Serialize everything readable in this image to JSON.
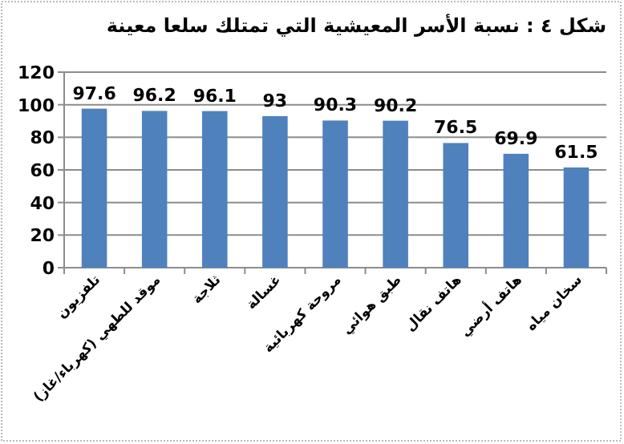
{
  "chart_data": {
    "type": "bar",
    "title": "شكل ٤ : نسبة الأسر المعيشية التي تمتلك سلعا معينة",
    "categories": [
      "تلفزيون",
      "موقد للطهي (كهرباء/غاز)",
      "ثلاجة",
      "غسالة",
      "مروحة كهربائية",
      "طبق هوائي",
      "هاتف نقال",
      "هاتف أرضي",
      "سخان مياه"
    ],
    "values": [
      97.6,
      96.2,
      96.1,
      93,
      90.3,
      90.2,
      76.5,
      69.9,
      61.5
    ],
    "color": "#4f81bd",
    "ylim": [
      0,
      120
    ],
    "yticks": [
      0,
      20,
      40,
      60,
      80,
      100,
      120
    ],
    "grid": "y",
    "data_labels": true
  }
}
